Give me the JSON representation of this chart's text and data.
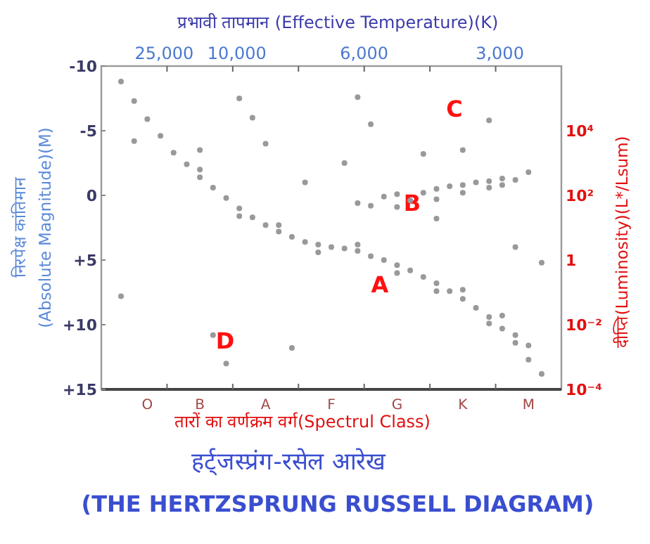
{
  "chart_data": {
    "type": "scatter",
    "title": "हर्ट्जस्प्रंग-रसेल आरेख",
    "subtitle": "(THE HERTZSPRUNG RUSSELL DIAGRAM)",
    "xlabel": "तारों का वर्णक्रम वर्ग(Spectrul Class)",
    "x2label": "प्रभावी तापमान (Effective Temperature)(K)",
    "ylabel": "निरपेक्ष कांतिमान\n(Absolute Magnitude)(M)",
    "y2label": "दीप्ति(Luminosity)(L*/Lsum)",
    "categories": [
      null,
      null,
      null,
      "O",
      null,
      null,
      null,
      "B",
      null,
      null,
      null,
      null,
      "A",
      null,
      null,
      null,
      null,
      "F",
      null,
      null,
      null,
      null,
      "G",
      null,
      null,
      null,
      null,
      "K",
      null,
      null,
      null,
      null,
      "M",
      null,
      null
    ],
    "ylim": [
      15,
      -10
    ],
    "yticks": [
      -10,
      -5,
      0,
      {
        "value": 5,
        "label": "+5"
      },
      {
        "value": 10,
        "label": "+10"
      },
      {
        "value": 15,
        "label": "+15"
      }
    ],
    "y2lim": [
      0.0001,
      1000000
    ],
    "y2ticks": [
      {
        "value": 10000,
        "label": "10⁴"
      },
      {
        "value": 100,
        "label": "10²"
      },
      1,
      {
        "value": 0.01,
        "label": "10⁻²"
      },
      {
        "value": 0.0001,
        "label": "10⁻⁴"
      }
    ],
    "log": "y2",
    "annotations": [
      "25,000",
      "10,000",
      "6,000",
      "3,000",
      "A",
      "B",
      "C",
      "D"
    ],
    "series": [
      {
        "color": "#999999",
        "values": [
          null,
          -8.8,
          -7.3,
          -5.9,
          -4.6,
          -3.3,
          -2.4,
          -1.4,
          -0.6,
          0.2,
          1.0,
          1.7,
          2.3,
          2.8,
          3.2,
          3.6,
          3.8,
          4.0,
          4.1,
          4.3,
          4.7,
          5.0,
          5.4,
          5.8,
          6.3,
          6.8,
          7.4,
          8.0,
          8.7,
          9.4,
          10.3,
          11.4,
          12.7,
          13.8,
          null
        ]
      },
      {
        "color": "#999999",
        "values": [
          null,
          null,
          null,
          null,
          null,
          null,
          null,
          -2.0,
          null,
          null,
          1.6,
          null,
          null,
          2.3,
          null,
          null,
          4.4,
          null,
          null,
          3.8,
          null,
          null,
          6.0,
          null,
          null,
          7.4,
          null,
          7.3,
          null,
          9.9,
          9.3,
          10.8,
          11.6,
          null,
          null
        ]
      },
      {
        "color": "#999999",
        "values": [
          null,
          null,
          null,
          null,
          null,
          null,
          null,
          null,
          null,
          null,
          null,
          null,
          null,
          null,
          null,
          null,
          null,
          null,
          null,
          0.6,
          0.8,
          0.1,
          -0.1,
          0.4,
          -0.2,
          -0.5,
          -0.7,
          -0.8,
          -1.0,
          -1.1,
          -1.3,
          -1.2,
          null,
          null,
          null
        ]
      },
      {
        "color": "#999999",
        "values": [
          null,
          null,
          null,
          null,
          null,
          null,
          null,
          null,
          null,
          null,
          null,
          null,
          null,
          null,
          null,
          null,
          null,
          null,
          null,
          null,
          null,
          null,
          0.9,
          null,
          null,
          0.3,
          null,
          -0.2,
          null,
          -0.6,
          -0.8,
          null,
          -1.8,
          null,
          null
        ]
      },
      {
        "color": "#999999",
        "values": [
          null,
          7.8,
          -4.2,
          null,
          null,
          null,
          null,
          -3.5,
          10.8,
          13.0,
          -7.5,
          -6.0,
          -4.0,
          null,
          11.8,
          -1.0,
          null,
          null,
          -2.5,
          -7.6,
          -5.5,
          null,
          null,
          null,
          -3.2,
          1.8,
          null,
          -3.5,
          null,
          -5.8,
          null,
          4.0,
          null,
          5.2,
          null
        ]
      }
    ]
  }
}
